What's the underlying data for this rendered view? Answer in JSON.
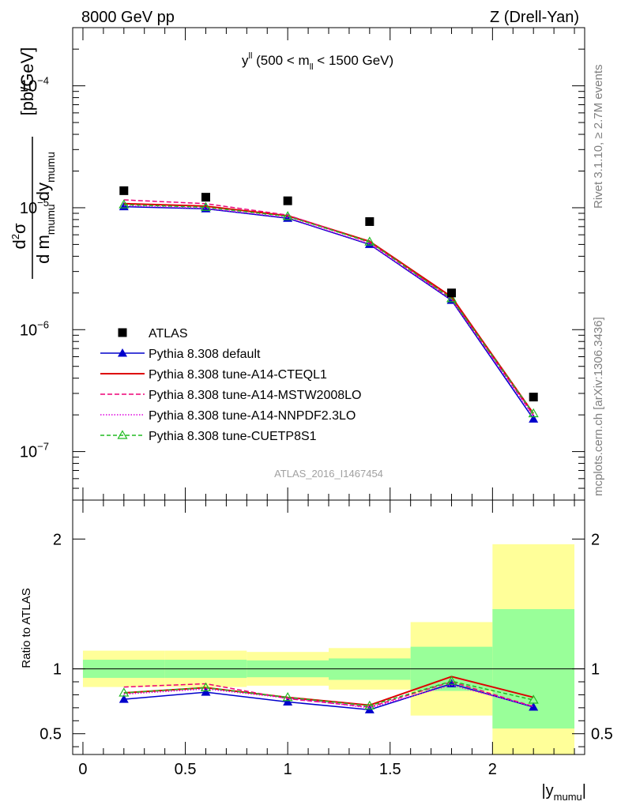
{
  "header": {
    "left": "8000 GeV pp",
    "right": "Z (Drell-Yan)"
  },
  "side_text": {
    "rivet": "Rivet 3.1.10, ≥ 2.7M events",
    "mcplots": "mcplots.cern.ch [arXiv:1306.3436]"
  },
  "watermark": "ATLAS_2016_I1467454",
  "colors": {
    "atlas": "#000000",
    "default": "#0000cc",
    "cteql1": "#dd0000",
    "mstw": "#ee0077",
    "nnpdf": "#dd00dd",
    "cuetp8s1": "#22bb22",
    "band_inner": "#99ff99",
    "band_outer": "#ffff99"
  },
  "chart_data": [
    {
      "type": "line",
      "title_main": "y",
      "title_sup": "ll",
      "title_rest_1": " (500 < m",
      "title_sub": "ll",
      "title_rest_2": " < 1500 GeV)",
      "ylabel": "[pb/GeV]",
      "ylabel_parts": {
        "d2": "d",
        "sup2": "2",
        "sigma": "σ",
        "dm": "d m",
        "mumu1": "mumu",
        "dy": "dy",
        "mumu2": "mumu"
      },
      "yscale": "log",
      "ylim": [
        4e-08,
        0.0003
      ],
      "xlim": [
        -0.05,
        2.45
      ],
      "y_tick_labels": [
        {
          "base": "10",
          "exp": "−4",
          "value": 0.0001
        },
        {
          "base": "10",
          "exp": "−5",
          "value": 1e-05
        },
        {
          "base": "10",
          "exp": "−6",
          "value": 1e-06
        },
        {
          "base": "10",
          "exp": "−7",
          "value": 1e-07
        }
      ],
      "x": [
        0.2,
        0.6,
        1.0,
        1.4,
        1.8,
        2.2
      ],
      "atlas": {
        "name": "ATLAS",
        "values": [
          1.38e-05,
          1.22e-05,
          1.14e-05,
          7.7e-06,
          2e-06,
          2.8e-07
        ]
      },
      "series": [
        {
          "key": "default",
          "name": "Pythia 8.308 default",
          "values": [
            1.02e-05,
            9.8e-06,
            8.2e-06,
            5e-06,
            1.74e-06,
            1.85e-07
          ]
        },
        {
          "key": "cteql1",
          "name": "Pythia 8.308 tune-A14-CTEQL1",
          "values": [
            1.08e-05,
            1.03e-05,
            8.6e-06,
            5.3e-06,
            1.86e-06,
            2.05e-07
          ]
        },
        {
          "key": "mstw",
          "name": "Pythia 8.308 tune-A14-MSTW2008LO",
          "values": [
            1.16e-05,
            1.08e-05,
            8.7e-06,
            5.2e-06,
            1.79e-06,
            1.98e-07
          ]
        },
        {
          "key": "nnpdf",
          "name": "Pythia 8.308 tune-A14-NNPDF2.3LO",
          "values": [
            1.04e-05,
            9.9e-06,
            8.3e-06,
            5.05e-06,
            1.76e-06,
            1.95e-07
          ]
        },
        {
          "key": "cuetp8s1",
          "name": "Pythia 8.308 tune-CUETP8S1",
          "values": [
            1.06e-05,
            1.01e-05,
            8.5e-06,
            5.25e-06,
            1.8e-06,
            2.05e-07
          ]
        }
      ],
      "legend_position": "bottom-left"
    },
    {
      "type": "line",
      "ylabel": "Ratio to ATLAS",
      "xlabel": "|y",
      "xlabel_sub": "mumu",
      "xlabel_end": "|",
      "ylim": [
        0.34,
        2.3
      ],
      "xlim": [
        -0.05,
        2.45
      ],
      "y_tick_labels": [
        "2",
        "1",
        "0.5"
      ],
      "y_tick_values": [
        2,
        1,
        0.5
      ],
      "x_tick_labels": [
        "0",
        "0.5",
        "1",
        "1.5",
        "2"
      ],
      "x_tick_values": [
        0,
        0.5,
        1,
        1.5,
        2
      ],
      "bins": [
        {
          "lo": 0.0,
          "hi": 0.4,
          "inner": [
            0.93,
            1.07
          ],
          "outer": [
            0.86,
            1.14
          ]
        },
        {
          "lo": 0.4,
          "hi": 0.8,
          "inner": [
            0.93,
            1.07
          ],
          "outer": [
            0.86,
            1.14
          ]
        },
        {
          "lo": 0.8,
          "hi": 1.2,
          "inner": [
            0.935,
            1.065
          ],
          "outer": [
            0.87,
            1.13
          ]
        },
        {
          "lo": 1.2,
          "hi": 1.6,
          "inner": [
            0.915,
            1.08
          ],
          "outer": [
            0.84,
            1.16
          ]
        },
        {
          "lo": 1.6,
          "hi": 2.0,
          "inner": [
            0.83,
            1.17
          ],
          "outer": [
            0.64,
            1.36
          ]
        },
        {
          "lo": 2.0,
          "hi": 2.4,
          "inner": [
            0.54,
            1.46
          ],
          "outer": [
            0.34,
            1.96
          ]
        }
      ],
      "x": [
        0.2,
        0.6,
        1.0,
        1.4,
        1.8,
        2.2
      ],
      "series": [
        {
          "key": "default",
          "values": [
            0.765,
            0.82,
            0.745,
            0.685,
            0.885,
            0.705
          ]
        },
        {
          "key": "cteql1",
          "values": [
            0.815,
            0.855,
            0.78,
            0.72,
            0.94,
            0.78
          ]
        },
        {
          "key": "mstw",
          "values": [
            0.86,
            0.885,
            0.77,
            0.705,
            0.9,
            0.71
          ]
        },
        {
          "key": "nnpdf",
          "values": [
            0.805,
            0.845,
            0.775,
            0.7,
            0.875,
            0.71
          ]
        },
        {
          "key": "cuetp8s1",
          "values": [
            0.815,
            0.855,
            0.78,
            0.715,
            0.905,
            0.76
          ]
        }
      ]
    }
  ]
}
